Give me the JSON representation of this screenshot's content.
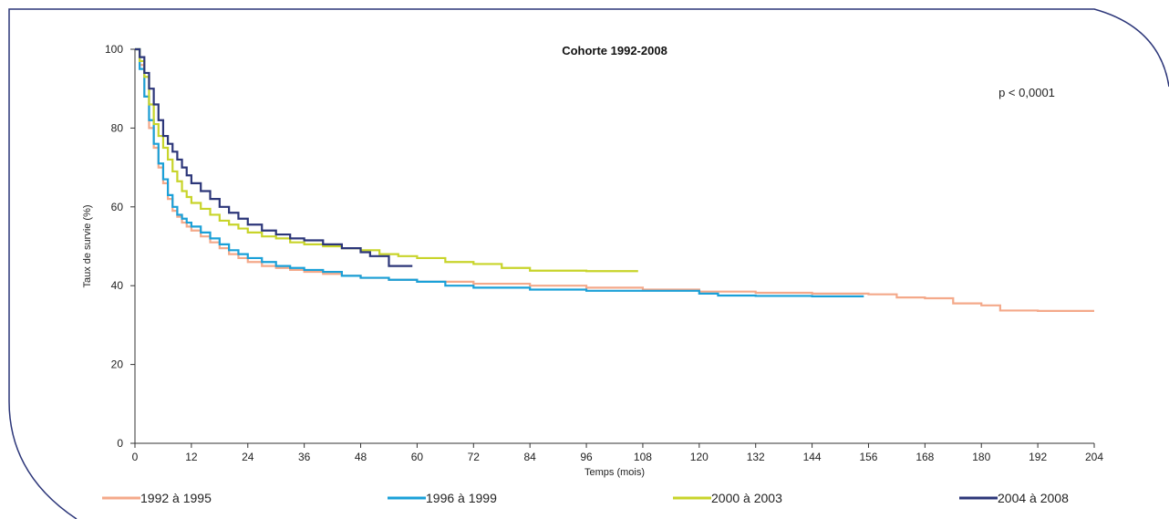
{
  "chart_data": {
    "type": "line",
    "title": "Cohorte 1992-2008",
    "xlabel": "Temps (mois)",
    "ylabel": "Taux de survie (%)",
    "annotation": "p < 0,0001",
    "xlim": [
      0,
      204
    ],
    "ylim": [
      0,
      100
    ],
    "xticks": [
      0,
      12,
      24,
      36,
      48,
      60,
      72,
      84,
      96,
      108,
      120,
      132,
      144,
      156,
      168,
      180,
      192,
      204
    ],
    "yticks": [
      0,
      20,
      40,
      60,
      80,
      100
    ],
    "grid": false,
    "legend_position": "bottom",
    "step": true,
    "series": [
      {
        "name": "1992 à 1995",
        "color": "#f4a98a",
        "x": [
          0,
          1,
          2,
          3,
          4,
          5,
          6,
          7,
          8,
          9,
          10,
          11,
          12,
          14,
          16,
          18,
          20,
          22,
          24,
          27,
          30,
          33,
          36,
          40,
          44,
          48,
          54,
          60,
          72,
          84,
          96,
          108,
          120,
          132,
          144,
          156,
          162,
          168,
          174,
          180,
          184,
          192,
          204
        ],
        "y": [
          100,
          96,
          88,
          80,
          75,
          70,
          66,
          62,
          59,
          57.5,
          56,
          55,
          54,
          52.5,
          51,
          49.5,
          48,
          47,
          46,
          45,
          44.5,
          44,
          43.5,
          43,
          42.5,
          42,
          41.5,
          41,
          40.5,
          40,
          39.5,
          39,
          38.5,
          38.2,
          38,
          37.8,
          37,
          36.8,
          35.5,
          35,
          33.7,
          33.6,
          33.6
        ]
      },
      {
        "name": "1996 à 1999",
        "color": "#1aa0d8",
        "x": [
          0,
          1,
          2,
          3,
          4,
          5,
          6,
          7,
          8,
          9,
          10,
          11,
          12,
          14,
          16,
          18,
          20,
          22,
          24,
          27,
          30,
          33,
          36,
          40,
          44,
          48,
          54,
          60,
          66,
          72,
          84,
          96,
          108,
          120,
          124,
          132,
          144,
          155
        ],
        "y": [
          100,
          95,
          88,
          82,
          76,
          71,
          67,
          63,
          60,
          58,
          57,
          56,
          55,
          53.5,
          52,
          50.5,
          49,
          48,
          47,
          46,
          45,
          44.5,
          44,
          43.5,
          42.5,
          42,
          41.5,
          41,
          40,
          39.5,
          39,
          38.7,
          38.7,
          38,
          37.5,
          37.4,
          37.3,
          37.3
        ]
      },
      {
        "name": "2000 à 2003",
        "color": "#c8d42a",
        "x": [
          0,
          1,
          2,
          3,
          4,
          5,
          6,
          7,
          8,
          9,
          10,
          11,
          12,
          14,
          16,
          18,
          20,
          22,
          24,
          27,
          30,
          33,
          36,
          40,
          44,
          48,
          52,
          56,
          60,
          66,
          72,
          78,
          84,
          96,
          107
        ],
        "y": [
          100,
          97,
          93,
          86,
          81,
          78,
          75,
          72,
          69,
          66.5,
          64,
          62.5,
          61,
          59.5,
          58,
          56.5,
          55.5,
          54.5,
          53.5,
          52.5,
          52,
          51,
          50.5,
          50,
          49.5,
          49,
          48,
          47.5,
          47,
          46,
          45.5,
          44.5,
          43.8,
          43.7,
          43.7
        ]
      },
      {
        "name": "2004 à 2008",
        "color": "#2c3679",
        "x": [
          0,
          1,
          2,
          3,
          4,
          5,
          6,
          7,
          8,
          9,
          10,
          11,
          12,
          14,
          16,
          18,
          20,
          22,
          24,
          27,
          30,
          33,
          36,
          40,
          44,
          48,
          50,
          54,
          59
        ],
        "y": [
          100,
          98,
          94,
          90,
          86,
          82,
          78,
          76,
          74,
          72,
          70,
          68,
          66,
          64,
          62,
          60,
          58.5,
          57,
          55.5,
          54,
          53,
          52,
          51.5,
          50.5,
          49.5,
          48.5,
          47.5,
          45,
          45
        ]
      }
    ]
  }
}
